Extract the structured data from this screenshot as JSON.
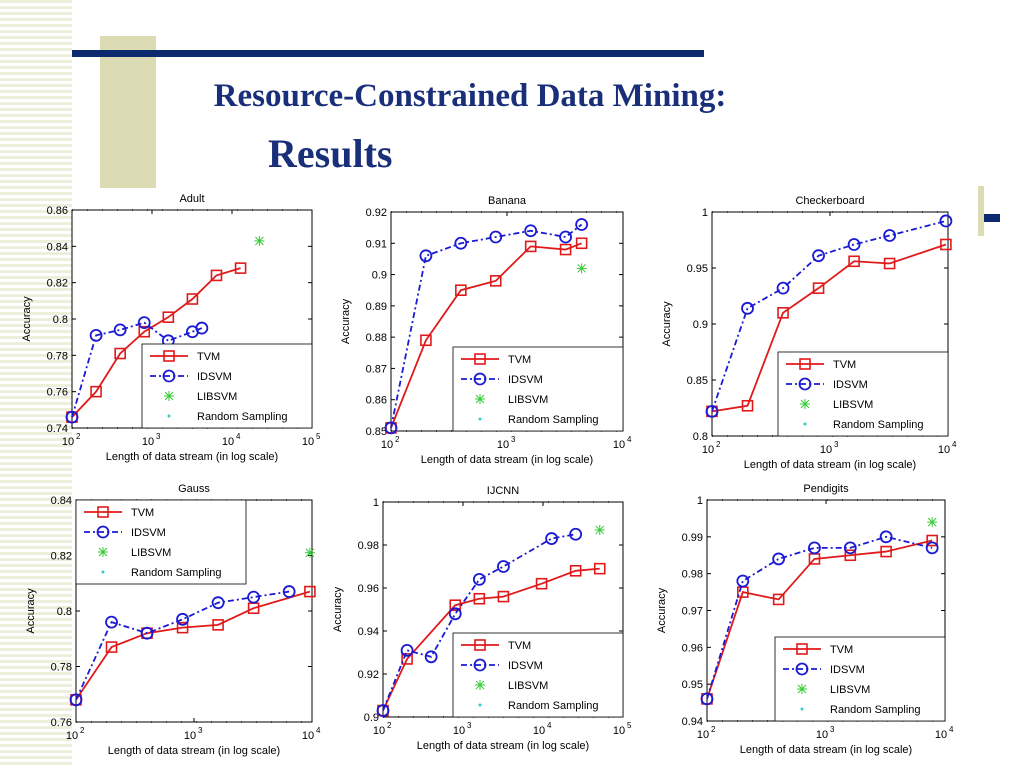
{
  "slide": {
    "title_line1": "Resource-Constrained Data Mining:",
    "title_line2": "Results"
  },
  "colors": {
    "tvm": "#e01a1a",
    "idsvm": "#1a1ad4",
    "libsvm": "#33cc33",
    "random": "#33cccc",
    "title": "#1a2f7a",
    "navy_bar": "#0d2a6e",
    "tan_bar": "#dcdcb4"
  },
  "chart_data": [
    {
      "type": "line",
      "title": "Adult",
      "xlabel": "Length of data stream (in log scale)",
      "ylabel": "Accuracy",
      "xscale": "log",
      "xlim": [
        100,
        100000
      ],
      "ylim": [
        0.74,
        0.86
      ],
      "xticks": [
        100,
        1000,
        10000,
        100000
      ],
      "xtick_exponents": [
        "2",
        "3",
        "4",
        "5"
      ],
      "yticks": [
        "0.74",
        "0.76",
        "0.78",
        "0.8",
        "0.82",
        "0.84",
        "0.86"
      ],
      "legend_position": "bottom-right",
      "series": [
        {
          "name": "TVM",
          "style": "tvm",
          "x": [
            100,
            200,
            400,
            800,
            1600,
            3200,
            6400,
            12800
          ],
          "y": [
            0.746,
            0.76,
            0.781,
            0.793,
            0.801,
            0.811,
            0.824,
            0.828
          ]
        },
        {
          "name": "IDSVM",
          "style": "idsvm",
          "x": [
            100,
            200,
            400,
            800,
            1600,
            3200,
            4200
          ],
          "y": [
            0.746,
            0.791,
            0.794,
            0.798,
            0.788,
            0.793,
            0.795
          ]
        },
        {
          "name": "LIBSVM",
          "style": "libsvm",
          "x": [
            22000
          ],
          "y": [
            0.843
          ]
        },
        {
          "name": "Random Sampling",
          "style": "random",
          "x": [],
          "y": []
        }
      ]
    },
    {
      "type": "line",
      "title": "Banana",
      "xlabel": "Length of data stream (in log scale)",
      "ylabel": "Accuracy",
      "xscale": "log",
      "xlim": [
        100,
        10000
      ],
      "ylim": [
        0.85,
        0.92
      ],
      "xticks": [
        100,
        1000,
        10000
      ],
      "xtick_exponents": [
        "2",
        "3",
        "4"
      ],
      "yticks": [
        "0.85",
        "0.86",
        "0.87",
        "0.88",
        "0.89",
        "0.9",
        "0.91",
        "0.92"
      ],
      "legend_position": "bottom-right",
      "series": [
        {
          "name": "TVM",
          "style": "tvm",
          "x": [
            100,
            200,
            400,
            800,
            1600,
            3200,
            4400
          ],
          "y": [
            0.851,
            0.879,
            0.895,
            0.898,
            0.909,
            0.908,
            0.91
          ]
        },
        {
          "name": "IDSVM",
          "style": "idsvm",
          "x": [
            100,
            200,
            400,
            800,
            1600,
            3200,
            4400
          ],
          "y": [
            0.851,
            0.906,
            0.91,
            0.912,
            0.914,
            0.912,
            0.916
          ]
        },
        {
          "name": "LIBSVM",
          "style": "libsvm",
          "x": [
            4400
          ],
          "y": [
            0.902
          ]
        },
        {
          "name": "Random Sampling",
          "style": "random",
          "x": [],
          "y": []
        }
      ]
    },
    {
      "type": "line",
      "title": "Checkerboard",
      "xlabel": "Length of data stream (in log scale)",
      "ylabel": "Accuracy",
      "xscale": "log",
      "xlim": [
        100,
        10000
      ],
      "ylim": [
        0.8,
        1
      ],
      "xticks": [
        100,
        1000,
        10000
      ],
      "xtick_exponents": [
        "2",
        "3",
        "4"
      ],
      "yticks": [
        "0.8",
        "0.85",
        "0.9",
        "0.95",
        "1"
      ],
      "legend_position": "bottom-right",
      "series": [
        {
          "name": "TVM",
          "style": "tvm",
          "x": [
            100,
            200,
            400,
            800,
            1600,
            3200,
            9600
          ],
          "y": [
            0.822,
            0.827,
            0.91,
            0.932,
            0.956,
            0.954,
            0.971
          ]
        },
        {
          "name": "IDSVM",
          "style": "idsvm",
          "x": [
            100,
            200,
            400,
            800,
            1600,
            3200,
            9600
          ],
          "y": [
            0.822,
            0.914,
            0.932,
            0.961,
            0.971,
            0.979,
            0.992
          ]
        },
        {
          "name": "LIBSVM",
          "style": "libsvm",
          "x": [],
          "y": []
        },
        {
          "name": "Random Sampling",
          "style": "random",
          "x": [],
          "y": []
        }
      ]
    },
    {
      "type": "line",
      "title": "Gauss",
      "xlabel": "Length of data stream (in log scale)",
      "ylabel": "Accuracy",
      "xscale": "log",
      "xlim": [
        100,
        10000
      ],
      "ylim": [
        0.76,
        0.84
      ],
      "xticks": [
        100,
        1000,
        10000
      ],
      "xtick_exponents": [
        "2",
        "3",
        "4"
      ],
      "yticks": [
        "0.76",
        "0.78",
        "0.8",
        "0.82",
        "0.84"
      ],
      "legend_position": "top-left",
      "series": [
        {
          "name": "TVM",
          "style": "tvm",
          "x": [
            100,
            200,
            400,
            800,
            1600,
            3200,
            9600
          ],
          "y": [
            0.768,
            0.787,
            0.792,
            0.794,
            0.795,
            0.801,
            0.807
          ]
        },
        {
          "name": "IDSVM",
          "style": "idsvm",
          "x": [
            100,
            200,
            400,
            800,
            1600,
            3200,
            6400
          ],
          "y": [
            0.768,
            0.796,
            0.792,
            0.797,
            0.803,
            0.805,
            0.807
          ]
        },
        {
          "name": "LIBSVM",
          "style": "libsvm",
          "x": [
            9600
          ],
          "y": [
            0.821
          ]
        },
        {
          "name": "Random Sampling",
          "style": "random",
          "x": [],
          "y": []
        }
      ]
    },
    {
      "type": "line",
      "title": "IJCNN",
      "xlabel": "Length of data stream (in log scale)",
      "ylabel": "Accuracy",
      "xscale": "log",
      "xlim": [
        100,
        100000
      ],
      "ylim": [
        0.9,
        1
      ],
      "xticks": [
        100,
        1000,
        10000,
        100000
      ],
      "xtick_exponents": [
        "2",
        "3",
        "4",
        "5"
      ],
      "yticks": [
        "0.9",
        "0.92",
        "0.94",
        "0.96",
        "0.98",
        "1"
      ],
      "legend_position": "bottom-right",
      "series": [
        {
          "name": "TVM",
          "style": "tvm",
          "x": [
            100,
            200,
            800,
            1600,
            3200,
            9600,
            25600,
            51200
          ],
          "y": [
            0.903,
            0.927,
            0.952,
            0.955,
            0.956,
            0.962,
            0.968,
            0.969
          ]
        },
        {
          "name": "IDSVM",
          "style": "idsvm",
          "x": [
            100,
            200,
            400,
            800,
            1600,
            3200,
            12800,
            25600
          ],
          "y": [
            0.903,
            0.931,
            0.928,
            0.948,
            0.964,
            0.97,
            0.983,
            0.985
          ]
        },
        {
          "name": "LIBSVM",
          "style": "libsvm",
          "x": [
            51200
          ],
          "y": [
            0.987
          ]
        },
        {
          "name": "Random Sampling",
          "style": "random",
          "x": [],
          "y": []
        }
      ]
    },
    {
      "type": "line",
      "title": "Pendigits",
      "xlabel": "Length of data stream (in log scale)",
      "ylabel": "Accuracy",
      "xscale": "log",
      "xlim": [
        100,
        10000
      ],
      "ylim": [
        0.94,
        1
      ],
      "xticks": [
        100,
        1000,
        10000
      ],
      "xtick_exponents": [
        "2",
        "3",
        "4"
      ],
      "yticks": [
        "0.94",
        "0.95",
        "0.96",
        "0.97",
        "0.98",
        "0.99",
        "1"
      ],
      "legend_position": "bottom-right",
      "series": [
        {
          "name": "TVM",
          "style": "tvm",
          "x": [
            100,
            200,
            400,
            800,
            1600,
            3200,
            7800
          ],
          "y": [
            0.946,
            0.975,
            0.973,
            0.984,
            0.985,
            0.986,
            0.989
          ]
        },
        {
          "name": "IDSVM",
          "style": "idsvm",
          "x": [
            100,
            200,
            400,
            800,
            1600,
            3200,
            7800
          ],
          "y": [
            0.946,
            0.978,
            0.984,
            0.987,
            0.987,
            0.99,
            0.987
          ]
        },
        {
          "name": "LIBSVM",
          "style": "libsvm",
          "x": [
            7800
          ],
          "y": [
            0.994
          ]
        },
        {
          "name": "Random Sampling",
          "style": "random",
          "x": [],
          "y": []
        }
      ]
    }
  ]
}
